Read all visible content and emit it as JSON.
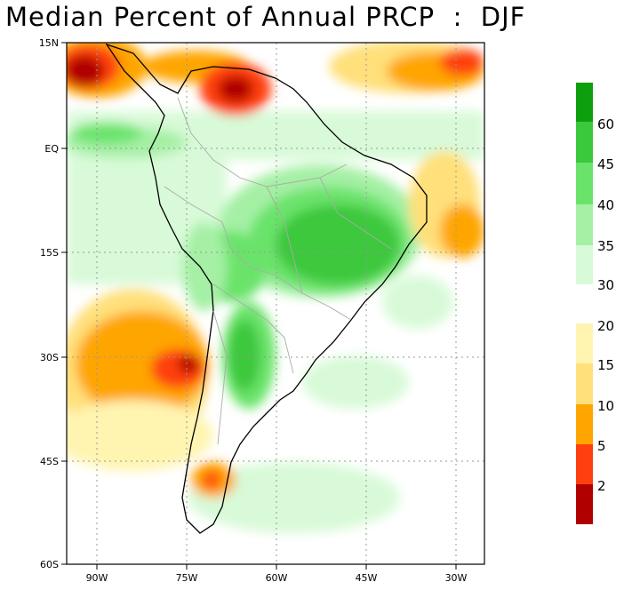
{
  "title": "Median Percent of Annual PRCP  :  DJF",
  "lat_labels": [
    "15N",
    "EQ",
    "15S",
    "30S",
    "45S",
    "60S"
  ],
  "lon_labels": [
    "90W",
    "75W",
    "60W",
    "45W",
    "30W"
  ],
  "legend_upper": {
    "colors": [
      "#0e9f0e",
      "#3cc83c",
      "#6be36b",
      "#a5f0a5",
      "#d8fad8",
      "#f5fff5"
    ],
    "labels": [
      "60",
      "45",
      "40",
      "35",
      "30"
    ]
  },
  "legend_lower": {
    "colors": [
      "#fff4b0",
      "#ffe07a",
      "#ffa500",
      "#ff3f10",
      "#b00000"
    ],
    "labels": [
      "20",
      "15",
      "10",
      "5",
      "2"
    ]
  }
}
